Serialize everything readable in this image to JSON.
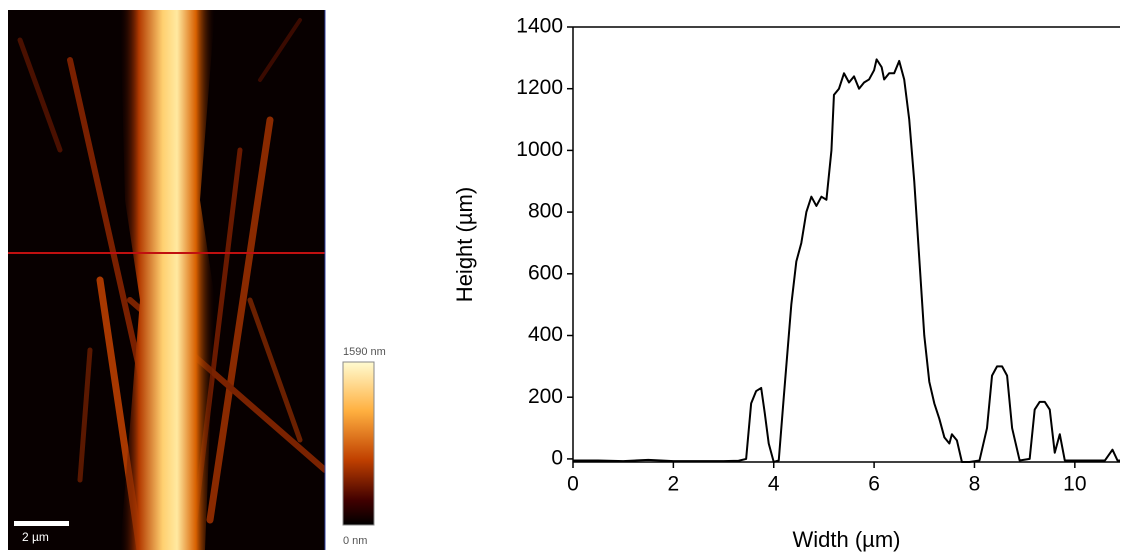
{
  "afm_image": {
    "scale_bar_label": "2 µm",
    "colorbar_max_label": "1590 nm",
    "colorbar_min_label": "0 nm"
  },
  "chart_data": {
    "type": "line",
    "x_label": "Width (µm)",
    "y_label": "Height (µm)",
    "x": [
      0,
      0.5,
      1,
      1.5,
      2,
      2.5,
      3,
      3.3,
      3.45,
      3.55,
      3.65,
      3.75,
      3.82,
      3.9,
      4.0,
      4.1,
      4.2,
      4.35,
      4.45,
      4.55,
      4.65,
      4.75,
      4.85,
      4.95,
      5.05,
      5.15,
      5.2,
      5.3,
      5.4,
      5.5,
      5.6,
      5.7,
      5.8,
      5.9,
      6.0,
      6.05,
      6.15,
      6.2,
      6.3,
      6.4,
      6.5,
      6.6,
      6.7,
      6.8,
      6.9,
      7.0,
      7.1,
      7.2,
      7.3,
      7.4,
      7.5,
      7.55,
      7.65,
      7.75,
      7.9,
      8.1,
      8.25,
      8.35,
      8.45,
      8.55,
      8.65,
      8.75,
      8.9,
      9.1,
      9.2,
      9.3,
      9.4,
      9.5,
      9.6,
      9.7,
      9.8,
      10,
      10.4,
      10.6,
      10.75,
      10.85,
      10.9
    ],
    "values": [
      -5,
      -5,
      -7,
      -3,
      -7,
      -7,
      -7,
      -6,
      0,
      180,
      220,
      230,
      150,
      50,
      -10,
      -5,
      200,
      500,
      640,
      700,
      800,
      850,
      820,
      850,
      840,
      1000,
      1180,
      1200,
      1250,
      1220,
      1240,
      1200,
      1220,
      1230,
      1260,
      1295,
      1270,
      1230,
      1250,
      1250,
      1290,
      1230,
      1100,
      900,
      650,
      400,
      250,
      180,
      130,
      70,
      50,
      80,
      60,
      -10,
      -10,
      -5,
      100,
      270,
      300,
      300,
      270,
      100,
      -5,
      0,
      160,
      185,
      185,
      160,
      20,
      80,
      -5,
      -5,
      -5,
      -5,
      30,
      -5,
      -5
    ],
    "color": "#000000",
    "xlim": [
      0,
      10.9
    ],
    "ylim": [
      -10,
      1400
    ],
    "xticks": [
      0,
      2,
      4,
      6,
      8,
      10
    ],
    "yticks": [
      0,
      200,
      400,
      600,
      800,
      1000,
      1200,
      1400
    ]
  }
}
